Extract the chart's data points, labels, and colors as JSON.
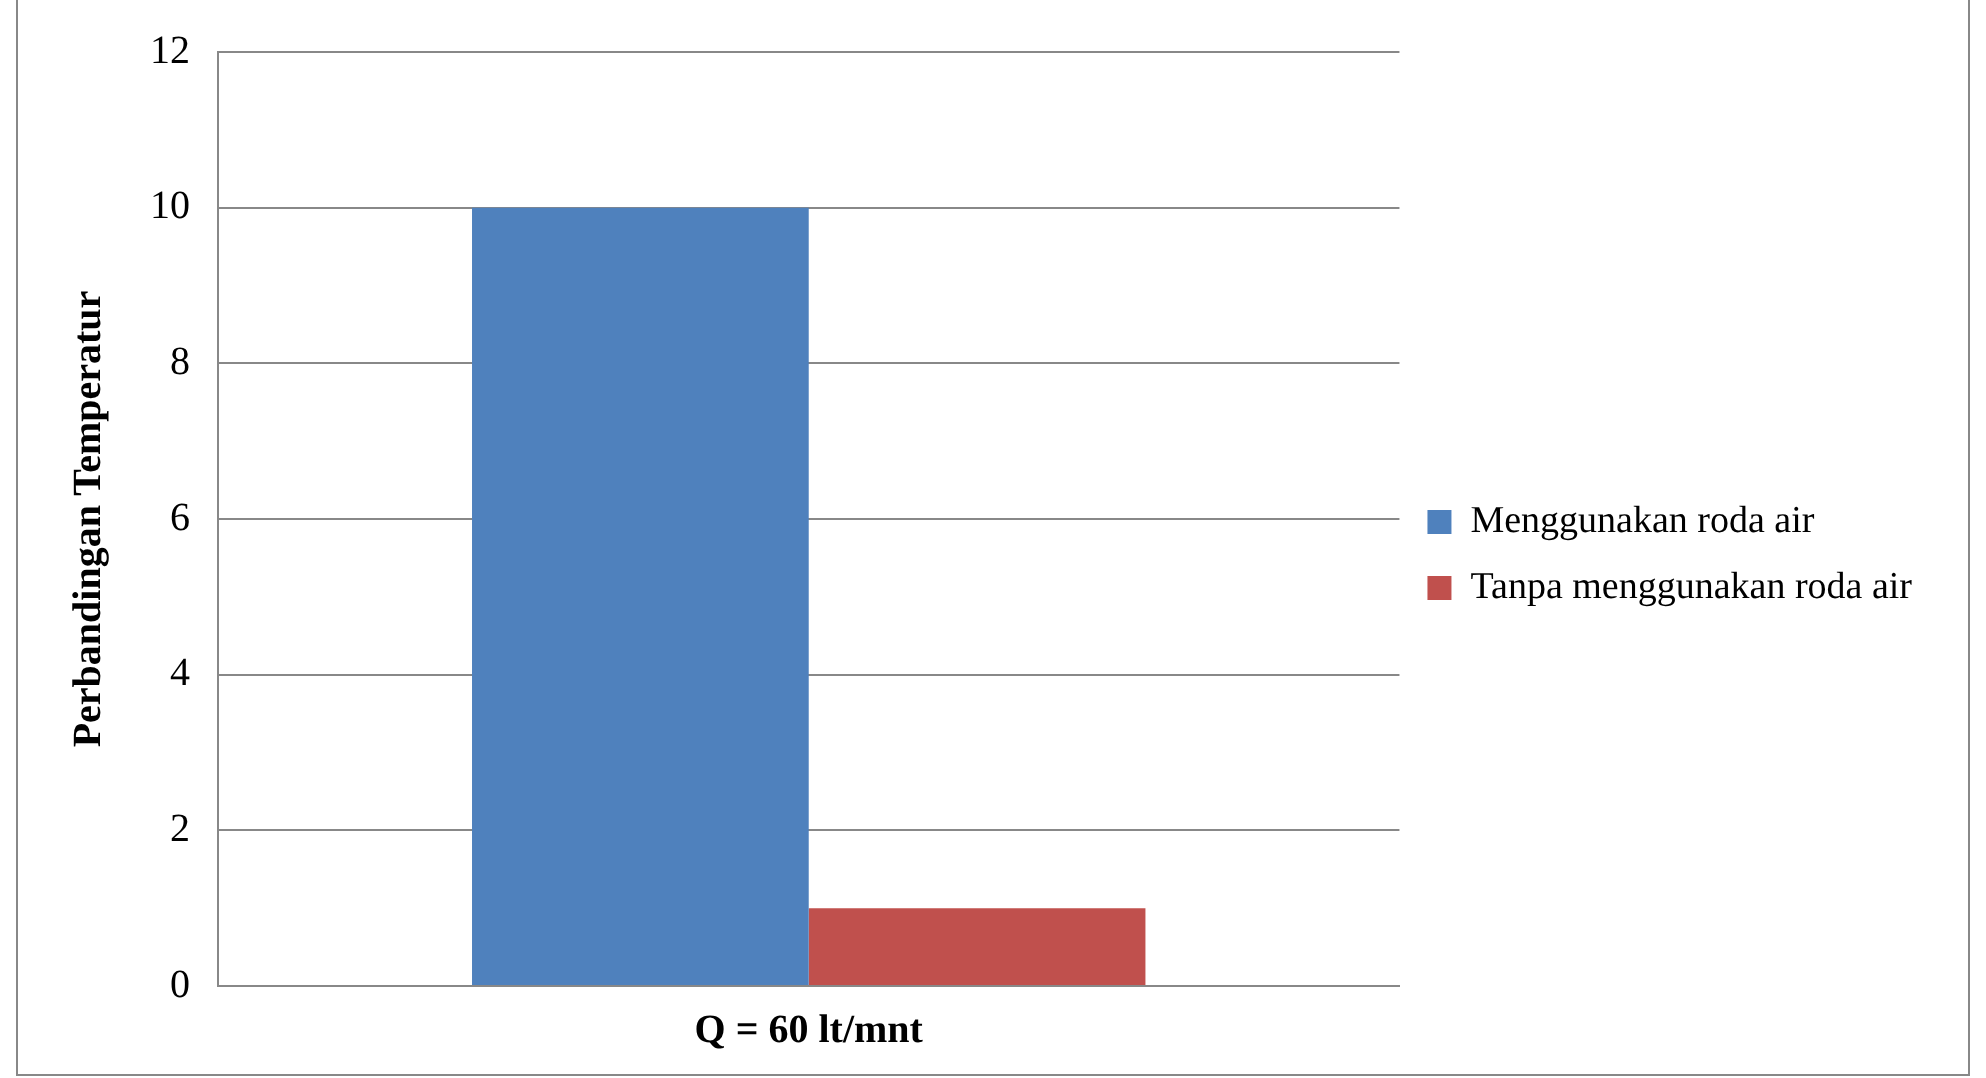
{
  "chart_data": {
    "type": "bar",
    "ylabel": "Perbandingan Temperatur",
    "categories": [
      "Q = 60 lt/mnt"
    ],
    "series": [
      {
        "name": "Menggunakan roda air",
        "color": "#4f81bd",
        "values": [
          10
        ]
      },
      {
        "name": "Tanpa menggunakan roda air",
        "color": "#c0504d",
        "values": [
          1
        ]
      }
    ],
    "ylim": [
      0,
      12
    ],
    "yticks": [
      0,
      2,
      4,
      6,
      8,
      10,
      12
    ],
    "grid": "y",
    "legend": "right"
  }
}
